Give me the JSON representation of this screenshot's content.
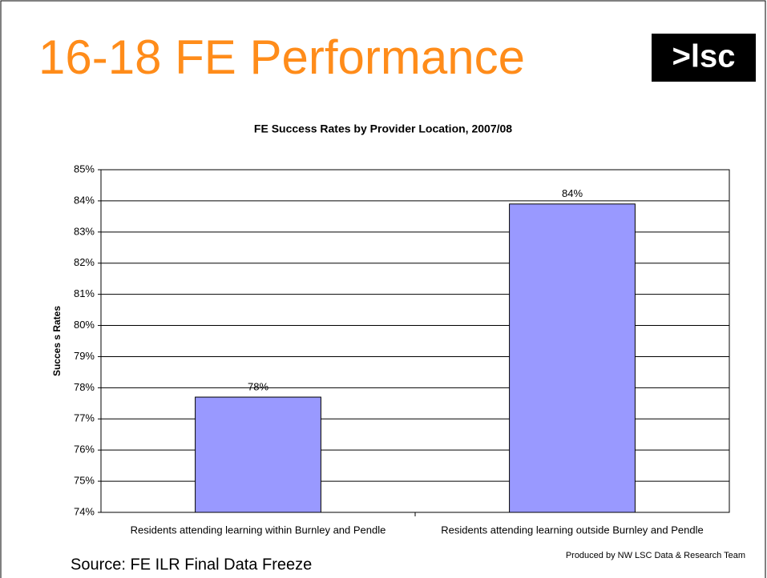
{
  "slide_title": "16-18 FE Performance",
  "logo": ">lsc",
  "source": "Source: FE ILR Final Data Freeze",
  "credit": "Produced by NW LSC Data & Research Team",
  "chart_data": {
    "type": "bar",
    "title": "FE Success Rates by Provider Location, 2007/08",
    "y_label": "Succes s Rates",
    "categories": [
      "Residents attending learning within Burnley and Pendle",
      "Residents attending learning outside Burnley and Pendle"
    ],
    "values": [
      77.7,
      83.9
    ],
    "value_labels": [
      "78%",
      "84%"
    ],
    "color": "#9999ff",
    "ylim": [
      74,
      85
    ],
    "yticks": [
      {
        "value": 74,
        "label": "74%"
      },
      {
        "value": 75,
        "label": "75%"
      },
      {
        "value": 76,
        "label": "76%"
      },
      {
        "value": 77,
        "label": "77%"
      },
      {
        "value": 78,
        "label": "78%"
      },
      {
        "value": 79,
        "label": "79%"
      },
      {
        "value": 80,
        "label": "80%"
      },
      {
        "value": 81,
        "label": "81%"
      },
      {
        "value": 82,
        "label": "82%"
      },
      {
        "value": 83,
        "label": "83%"
      },
      {
        "value": 84,
        "label": "84%"
      },
      {
        "value": 85,
        "label": "85%"
      }
    ],
    "grid": true
  }
}
